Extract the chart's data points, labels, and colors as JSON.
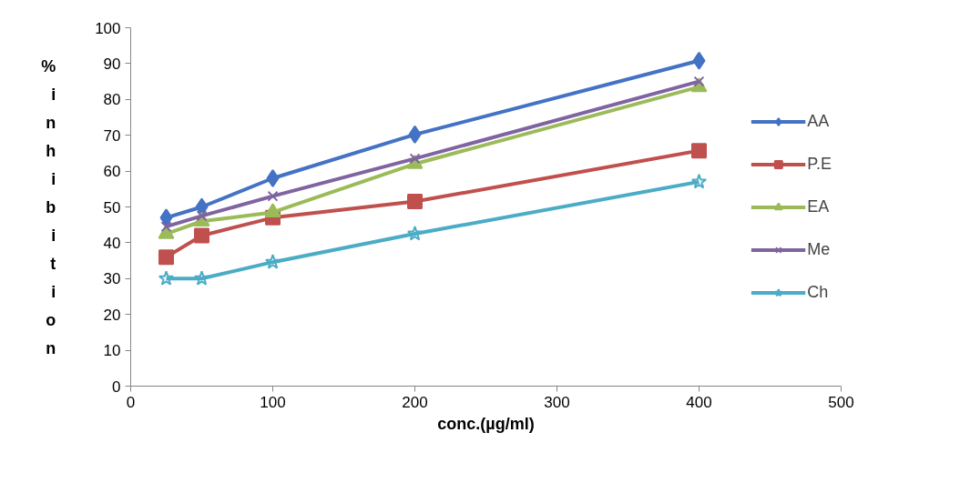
{
  "chart_data": {
    "type": "line",
    "xlabel": "conc.(µg/ml)",
    "ylabel": "% inhibition",
    "x": [
      25,
      50,
      100,
      200,
      400
    ],
    "xlim": [
      0,
      500
    ],
    "xticks": [
      0,
      100,
      200,
      300,
      400,
      500
    ],
    "ylim": [
      0,
      100
    ],
    "yticks": [
      0,
      10,
      20,
      30,
      40,
      50,
      60,
      70,
      80,
      90,
      100
    ],
    "grid": false,
    "legend": "right",
    "series": [
      {
        "name": "AA",
        "color": "#4472c4",
        "marker": "diamond",
        "values": [
          47,
          50,
          58,
          70.2,
          90.8
        ]
      },
      {
        "name": "P.E",
        "color": "#c0504d",
        "marker": "square",
        "values": [
          36,
          42,
          47,
          51.5,
          65.7
        ]
      },
      {
        "name": "EA",
        "color": "#9bbb59",
        "marker": "triangle",
        "values": [
          42.5,
          46,
          48.5,
          62,
          83.5
        ]
      },
      {
        "name": "Me",
        "color": "#8064a2",
        "marker": "cross",
        "values": [
          44.5,
          47.5,
          53,
          63.5,
          85
        ]
      },
      {
        "name": "Ch",
        "color": "#4bacc6",
        "marker": "star",
        "values": [
          30,
          30,
          34.6,
          42.5,
          57
        ]
      }
    ]
  }
}
